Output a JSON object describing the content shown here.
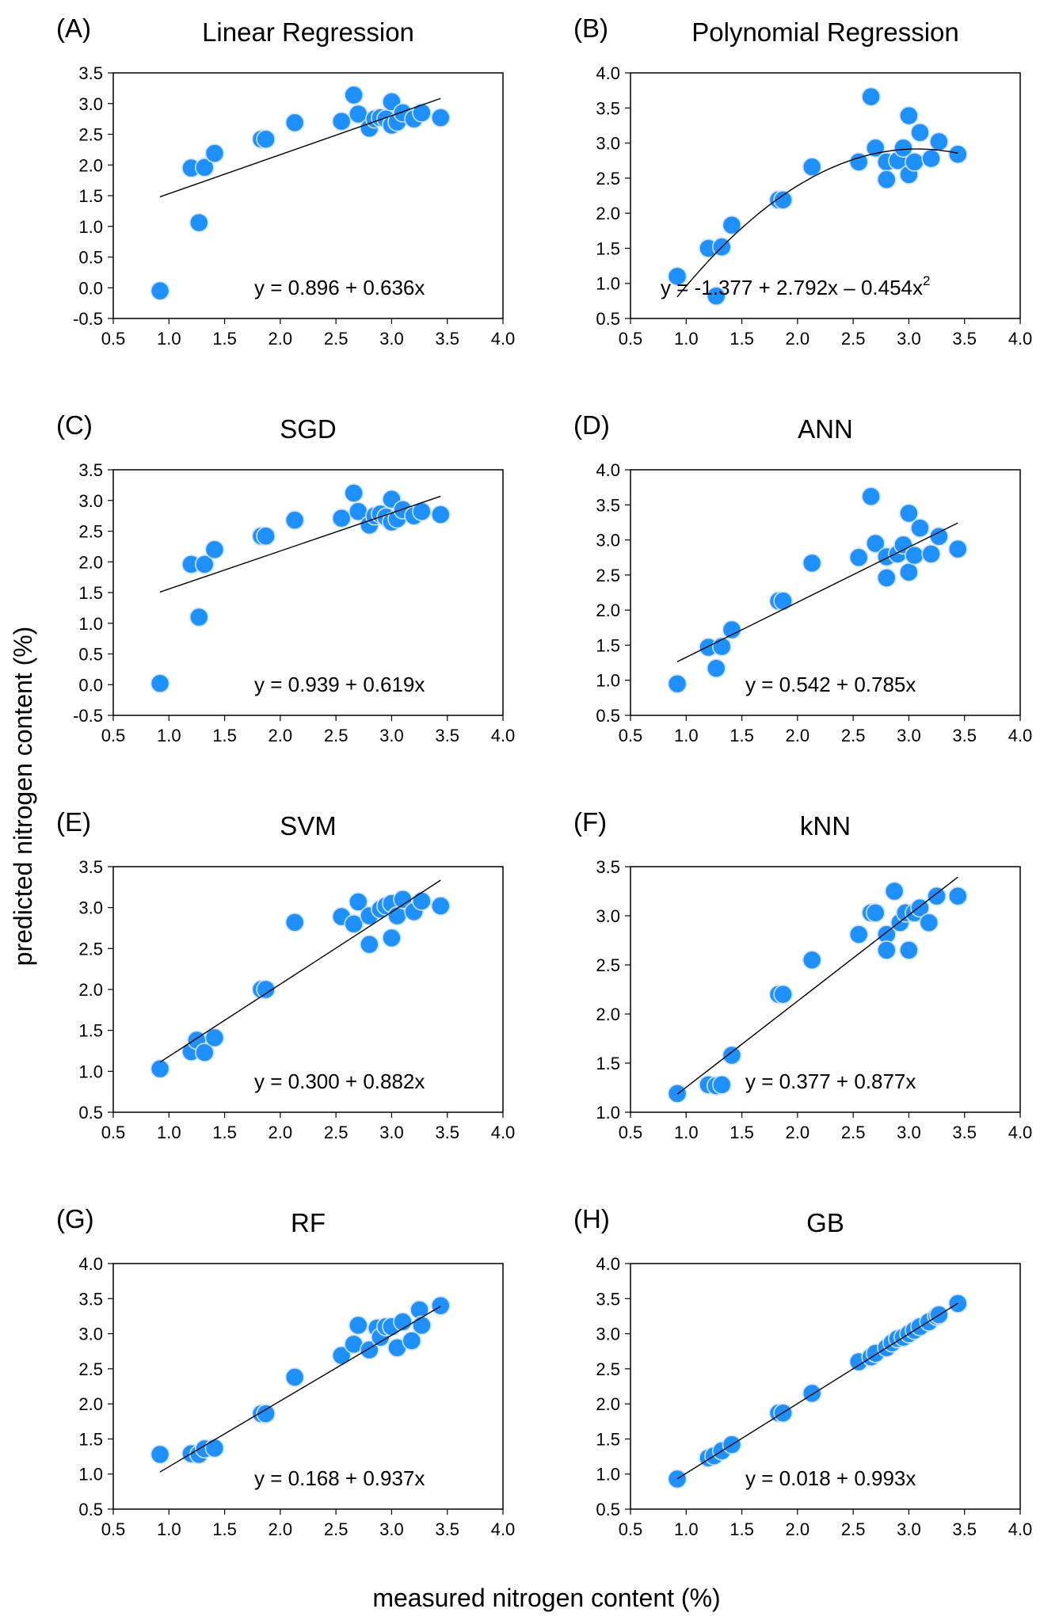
{
  "figure": {
    "xlabel": "measured nitrogen content (%)",
    "ylabel": "predicted nitrogen content (%)",
    "marker_fill": "#1e90ff",
    "marker_stroke": "#cfe3f8",
    "line_color": "#000000"
  },
  "chart_data": [
    {
      "type": "scatter",
      "letter": "(A)",
      "title": "Linear Regression",
      "equation": "y = 0.896 + 0.636x",
      "fit": {
        "kind": "linear",
        "a": 0.896,
        "b": 0.636,
        "x_range": [
          0.92,
          3.44
        ]
      },
      "xlim": [
        0.5,
        4.0
      ],
      "ylim": [
        -0.5,
        3.5
      ],
      "xticks": [
        "0.5",
        "1.0",
        "1.5",
        "2.0",
        "2.5",
        "3.0",
        "3.5",
        "4.0"
      ],
      "yticks": [
        "-0.5",
        "0.0",
        "0.5",
        "1.0",
        "1.5",
        "2.0",
        "2.5",
        "3.0",
        "3.5"
      ],
      "points": [
        [
          0.92,
          -0.05
        ],
        [
          1.2,
          1.95
        ],
        [
          1.27,
          1.06
        ],
        [
          1.32,
          1.96
        ],
        [
          1.41,
          2.19
        ],
        [
          1.83,
          2.42
        ],
        [
          1.87,
          2.42
        ],
        [
          2.13,
          2.69
        ],
        [
          2.55,
          2.71
        ],
        [
          2.66,
          3.14
        ],
        [
          2.7,
          2.83
        ],
        [
          2.8,
          2.6
        ],
        [
          2.85,
          2.75
        ],
        [
          2.9,
          2.77
        ],
        [
          2.95,
          2.75
        ],
        [
          3.0,
          3.03
        ],
        [
          3.0,
          2.65
        ],
        [
          3.05,
          2.7
        ],
        [
          3.1,
          2.85
        ],
        [
          3.2,
          2.75
        ],
        [
          3.27,
          2.85
        ],
        [
          3.44,
          2.77
        ]
      ]
    },
    {
      "type": "scatter",
      "letter": "(B)",
      "title": "Polynomial Regression",
      "equation": "y = -1.377 + 2.792x – 0.454x",
      "equation_sup": "2",
      "fit": {
        "kind": "poly2",
        "a": -1.377,
        "b": 2.792,
        "c": -0.454,
        "x_range": [
          0.92,
          3.44
        ]
      },
      "xlim": [
        0.5,
        4.0
      ],
      "ylim": [
        0.5,
        4.0
      ],
      "xticks": [
        "0.5",
        "1.0",
        "1.5",
        "2.0",
        "2.5",
        "3.0",
        "3.5",
        "4.0"
      ],
      "yticks": [
        "0.5",
        "1.0",
        "1.5",
        "2.0",
        "2.5",
        "3.0",
        "3.5",
        "4.0"
      ],
      "points": [
        [
          0.92,
          1.1
        ],
        [
          1.2,
          1.5
        ],
        [
          1.27,
          0.82
        ],
        [
          1.32,
          1.52
        ],
        [
          1.41,
          1.83
        ],
        [
          1.83,
          2.19
        ],
        [
          1.87,
          2.19
        ],
        [
          2.13,
          2.66
        ],
        [
          2.55,
          2.73
        ],
        [
          2.66,
          3.66
        ],
        [
          2.7,
          2.93
        ],
        [
          2.8,
          2.73
        ],
        [
          2.8,
          2.48
        ],
        [
          2.9,
          2.75
        ],
        [
          2.95,
          2.93
        ],
        [
          3.0,
          3.39
        ],
        [
          3.0,
          2.55
        ],
        [
          3.05,
          2.73
        ],
        [
          3.1,
          3.15
        ],
        [
          3.2,
          2.78
        ],
        [
          3.27,
          3.02
        ],
        [
          3.44,
          2.84
        ]
      ]
    },
    {
      "type": "scatter",
      "letter": "(C)",
      "title": "SGD",
      "equation": "y = 0.939 + 0.619x",
      "fit": {
        "kind": "linear",
        "a": 0.939,
        "b": 0.619,
        "x_range": [
          0.92,
          3.44
        ]
      },
      "xlim": [
        0.5,
        4.0
      ],
      "ylim": [
        -0.5,
        3.5
      ],
      "xticks": [
        "0.5",
        "1.0",
        "1.5",
        "2.0",
        "2.5",
        "3.0",
        "3.5",
        "4.0"
      ],
      "yticks": [
        "-0.5",
        "0.0",
        "0.5",
        "1.0",
        "1.5",
        "2.0",
        "2.5",
        "3.0",
        "3.5"
      ],
      "points": [
        [
          0.92,
          0.02
        ],
        [
          1.2,
          1.96
        ],
        [
          1.27,
          1.1
        ],
        [
          1.32,
          1.96
        ],
        [
          1.41,
          2.2
        ],
        [
          1.83,
          2.42
        ],
        [
          1.87,
          2.42
        ],
        [
          2.13,
          2.68
        ],
        [
          2.55,
          2.71
        ],
        [
          2.66,
          3.12
        ],
        [
          2.7,
          2.82
        ],
        [
          2.8,
          2.6
        ],
        [
          2.85,
          2.75
        ],
        [
          2.9,
          2.78
        ],
        [
          2.95,
          2.73
        ],
        [
          3.0,
          3.02
        ],
        [
          3.0,
          2.65
        ],
        [
          3.05,
          2.7
        ],
        [
          3.1,
          2.85
        ],
        [
          3.2,
          2.75
        ],
        [
          3.27,
          2.82
        ],
        [
          3.44,
          2.77
        ]
      ]
    },
    {
      "type": "scatter",
      "letter": "(D)",
      "title": "ANN",
      "equation": "y = 0.542 + 0.785x",
      "fit": {
        "kind": "linear",
        "a": 0.542,
        "b": 0.785,
        "x_range": [
          0.92,
          3.44
        ]
      },
      "xlim": [
        0.5,
        4.0
      ],
      "ylim": [
        0.5,
        4.0
      ],
      "xticks": [
        "0.5",
        "1.0",
        "1.5",
        "2.0",
        "2.5",
        "3.0",
        "3.5",
        "4.0"
      ],
      "yticks": [
        "0.5",
        "1.0",
        "1.5",
        "2.0",
        "2.5",
        "3.0",
        "3.5",
        "4.0"
      ],
      "points": [
        [
          0.92,
          0.95
        ],
        [
          1.2,
          1.47
        ],
        [
          1.27,
          1.17
        ],
        [
          1.32,
          1.48
        ],
        [
          1.41,
          1.72
        ],
        [
          1.83,
          2.13
        ],
        [
          1.87,
          2.13
        ],
        [
          2.13,
          2.67
        ],
        [
          2.55,
          2.75
        ],
        [
          2.66,
          3.62
        ],
        [
          2.7,
          2.95
        ],
        [
          2.8,
          2.76
        ],
        [
          2.8,
          2.46
        ],
        [
          2.9,
          2.8
        ],
        [
          2.95,
          2.93
        ],
        [
          3.0,
          3.38
        ],
        [
          3.0,
          2.54
        ],
        [
          3.05,
          2.78
        ],
        [
          3.1,
          3.17
        ],
        [
          3.2,
          2.8
        ],
        [
          3.27,
          3.05
        ],
        [
          3.44,
          2.87
        ]
      ]
    },
    {
      "type": "scatter",
      "letter": "(E)",
      "title": "SVM",
      "equation": "y = 0.300 + 0.882x",
      "fit": {
        "kind": "linear",
        "a": 0.3,
        "b": 0.882,
        "x_range": [
          0.92,
          3.44
        ]
      },
      "xlim": [
        0.5,
        4.0
      ],
      "ylim": [
        0.5,
        3.5
      ],
      "xticks": [
        "0.5",
        "1.0",
        "1.5",
        "2.0",
        "2.5",
        "3.0",
        "3.5",
        "4.0"
      ],
      "yticks": [
        "0.5",
        "1.0",
        "1.5",
        "2.0",
        "2.5",
        "3.0",
        "3.5"
      ],
      "points": [
        [
          0.92,
          1.03
        ],
        [
          1.2,
          1.24
        ],
        [
          1.25,
          1.38
        ],
        [
          1.32,
          1.23
        ],
        [
          1.41,
          1.41
        ],
        [
          1.83,
          2.0
        ],
        [
          1.87,
          2.0
        ],
        [
          2.13,
          2.82
        ],
        [
          2.55,
          2.89
        ],
        [
          2.66,
          2.8
        ],
        [
          2.7,
          3.07
        ],
        [
          2.8,
          2.9
        ],
        [
          2.8,
          2.55
        ],
        [
          2.9,
          2.98
        ],
        [
          2.95,
          3.02
        ],
        [
          3.0,
          3.05
        ],
        [
          3.0,
          2.63
        ],
        [
          3.05,
          2.9
        ],
        [
          3.1,
          3.1
        ],
        [
          3.2,
          2.95
        ],
        [
          3.27,
          3.08
        ],
        [
          3.44,
          3.02
        ]
      ]
    },
    {
      "type": "scatter",
      "letter": "(F)",
      "title": "kNN",
      "equation": "y = 0.377 + 0.877x",
      "fit": {
        "kind": "linear",
        "a": 0.377,
        "b": 0.877,
        "x_range": [
          0.92,
          3.44
        ]
      },
      "xlim": [
        0.5,
        4.0
      ],
      "ylim": [
        1.0,
        3.5
      ],
      "xticks": [
        "0.5",
        "1.0",
        "1.5",
        "2.0",
        "2.5",
        "3.0",
        "3.5",
        "4.0"
      ],
      "yticks": [
        "1.0",
        "1.5",
        "2.0",
        "2.5",
        "3.0",
        "3.5"
      ],
      "points": [
        [
          0.92,
          1.19
        ],
        [
          1.2,
          1.28
        ],
        [
          1.27,
          1.27
        ],
        [
          1.32,
          1.28
        ],
        [
          1.41,
          1.58
        ],
        [
          1.83,
          2.2
        ],
        [
          1.87,
          2.2
        ],
        [
          2.13,
          2.55
        ],
        [
          2.55,
          2.81
        ],
        [
          2.66,
          3.03
        ],
        [
          2.7,
          3.03
        ],
        [
          2.8,
          2.81
        ],
        [
          2.8,
          2.65
        ],
        [
          2.87,
          3.25
        ],
        [
          2.92,
          2.93
        ],
        [
          2.97,
          3.03
        ],
        [
          3.0,
          2.65
        ],
        [
          3.05,
          3.03
        ],
        [
          3.1,
          3.08
        ],
        [
          3.18,
          2.93
        ],
        [
          3.25,
          3.2
        ],
        [
          3.44,
          3.2
        ]
      ]
    },
    {
      "type": "scatter",
      "letter": "(G)",
      "title": "RF",
      "equation": "y = 0.168 + 0.937x",
      "fit": {
        "kind": "linear",
        "a": 0.168,
        "b": 0.937,
        "x_range": [
          0.92,
          3.44
        ]
      },
      "xlim": [
        0.5,
        4.0
      ],
      "ylim": [
        0.5,
        4.0
      ],
      "xticks": [
        "0.5",
        "1.0",
        "1.5",
        "2.0",
        "2.5",
        "3.0",
        "3.5",
        "4.0"
      ],
      "yticks": [
        "0.5",
        "1.0",
        "1.5",
        "2.0",
        "2.5",
        "3.0",
        "3.5",
        "4.0"
      ],
      "points": [
        [
          0.92,
          1.28
        ],
        [
          1.2,
          1.29
        ],
        [
          1.27,
          1.28
        ],
        [
          1.32,
          1.36
        ],
        [
          1.41,
          1.37
        ],
        [
          1.83,
          1.86
        ],
        [
          1.87,
          1.86
        ],
        [
          2.13,
          2.38
        ],
        [
          2.55,
          2.69
        ],
        [
          2.66,
          2.85
        ],
        [
          2.7,
          3.12
        ],
        [
          2.8,
          2.77
        ],
        [
          2.87,
          3.08
        ],
        [
          2.9,
          2.95
        ],
        [
          2.95,
          3.1
        ],
        [
          3.0,
          3.1
        ],
        [
          3.05,
          2.8
        ],
        [
          3.1,
          3.17
        ],
        [
          3.18,
          2.9
        ],
        [
          3.25,
          3.34
        ],
        [
          3.27,
          3.12
        ],
        [
          3.44,
          3.4
        ]
      ]
    },
    {
      "type": "scatter",
      "letter": "(H)",
      "title": "GB",
      "equation": "y = 0.018 + 0.993x",
      "fit": {
        "kind": "linear",
        "a": 0.018,
        "b": 0.993,
        "x_range": [
          0.92,
          3.44
        ]
      },
      "xlim": [
        0.5,
        4.0
      ],
      "ylim": [
        0.5,
        4.0
      ],
      "xticks": [
        "0.5",
        "1.0",
        "1.5",
        "2.0",
        "2.5",
        "3.0",
        "3.5",
        "4.0"
      ],
      "yticks": [
        "0.5",
        "1.0",
        "1.5",
        "2.0",
        "2.5",
        "3.0",
        "3.5",
        "4.0"
      ],
      "points": [
        [
          0.92,
          0.93
        ],
        [
          1.2,
          1.23
        ],
        [
          1.25,
          1.26
        ],
        [
          1.32,
          1.33
        ],
        [
          1.41,
          1.42
        ],
        [
          1.83,
          1.87
        ],
        [
          1.87,
          1.87
        ],
        [
          2.13,
          2.15
        ],
        [
          2.55,
          2.6
        ],
        [
          2.66,
          2.67
        ],
        [
          2.7,
          2.72
        ],
        [
          2.8,
          2.8
        ],
        [
          2.85,
          2.87
        ],
        [
          2.9,
          2.93
        ],
        [
          2.95,
          2.95
        ],
        [
          3.0,
          3.0
        ],
        [
          3.05,
          3.05
        ],
        [
          3.1,
          3.1
        ],
        [
          3.18,
          3.17
        ],
        [
          3.25,
          3.25
        ],
        [
          3.27,
          3.27
        ],
        [
          3.44,
          3.43
        ]
      ]
    }
  ]
}
